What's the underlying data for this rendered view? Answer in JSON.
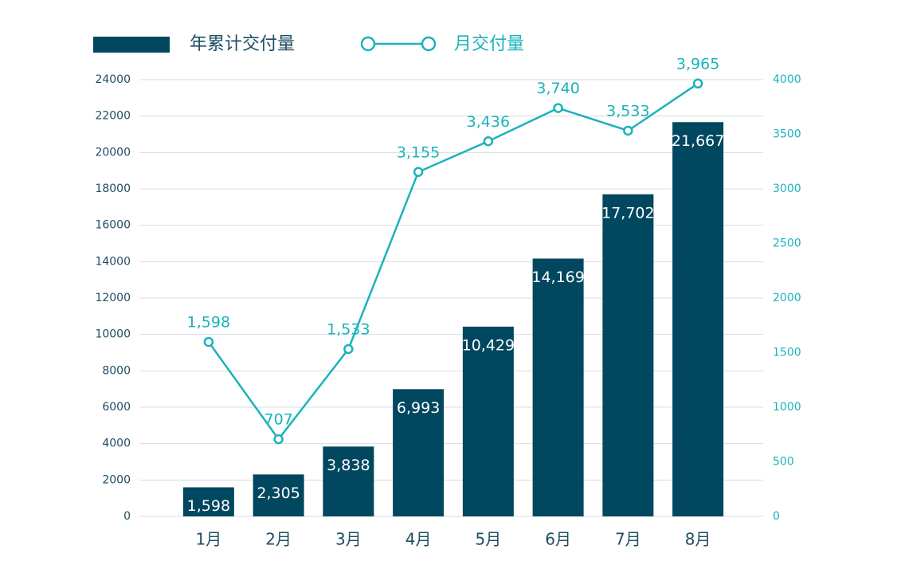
{
  "chart_data": {
    "type": "bar_line",
    "categories": [
      "1月",
      "2月",
      "3月",
      "4月",
      "5月",
      "6月",
      "7月",
      "8月"
    ],
    "series": [
      {
        "name": "年累计交付量",
        "type": "bar",
        "color": "#00475f",
        "values": [
          1598,
          2305,
          3838,
          6993,
          10429,
          14169,
          17702,
          21667
        ],
        "value_labels": [
          "1,598",
          "2,305",
          "3,838",
          "6,993",
          "10,429",
          "14,169",
          "17,702",
          "21,667"
        ]
      },
      {
        "name": "月交付量",
        "type": "line",
        "axis": "y2",
        "color": "#1ab3bb",
        "values": [
          1598,
          707,
          1533,
          3155,
          3436,
          3740,
          3533,
          3965
        ],
        "value_labels": [
          "1,598",
          "707",
          "1,533",
          "3,155",
          "3,436",
          "3,740",
          "3,533",
          "3,965"
        ]
      }
    ],
    "ylim": [
      0,
      24000
    ],
    "yticks": [
      0,
      2000,
      4000,
      6000,
      8000,
      10000,
      12000,
      14000,
      16000,
      18000,
      20000,
      22000,
      24000
    ],
    "y2lim": [
      0,
      4000
    ],
    "y2ticks": [
      0,
      500,
      1000,
      1500,
      2000,
      2500,
      3000,
      3500,
      4000
    ],
    "grid": true
  }
}
